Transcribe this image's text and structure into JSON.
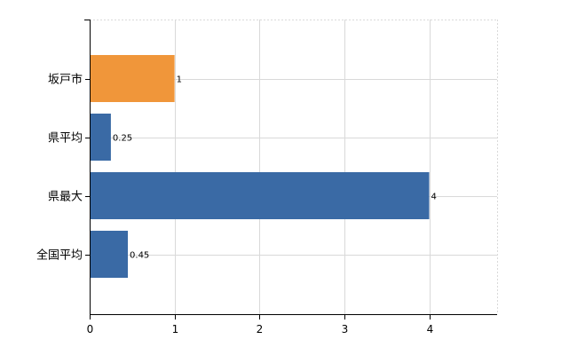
{
  "chart_data": {
    "type": "bar",
    "orientation": "horizontal",
    "categories": [
      "坂戸市",
      "県平均",
      "県最大",
      "全国平均"
    ],
    "values": [
      1,
      0.25,
      4,
      0.45
    ],
    "value_labels": [
      "1",
      "0.25",
      "4",
      "0.45"
    ],
    "bar_colors": [
      "#f0963a",
      "#3a6aa5",
      "#3a6aa5",
      "#3a6aa5"
    ],
    "xlim": [
      0,
      4.8
    ],
    "xticks": [
      0,
      1,
      2,
      3,
      4
    ],
    "grid": true,
    "title": "",
    "xlabel": "",
    "ylabel": ""
  }
}
